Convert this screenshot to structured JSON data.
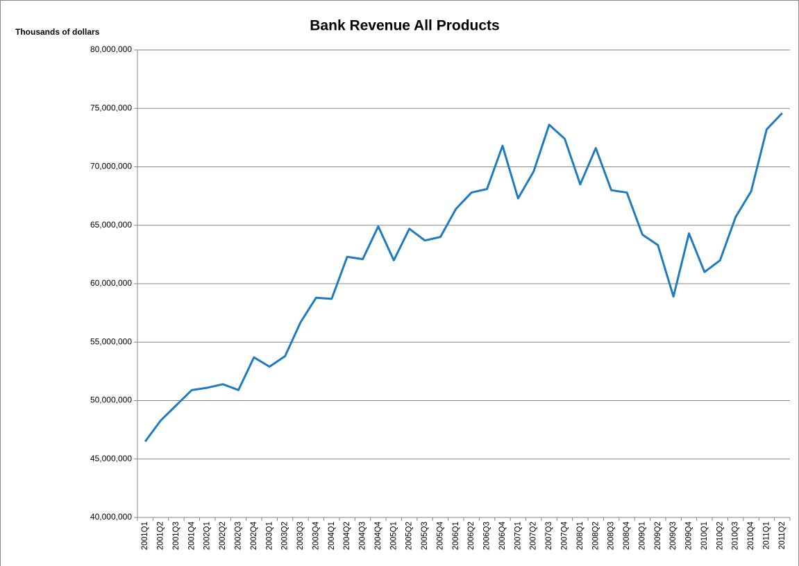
{
  "chart_data": {
    "type": "line",
    "title": "Bank Revenue All Products",
    "y_label": "Thousands of  dollars",
    "categories": [
      "2001Q1",
      "2001Q2",
      "2001Q3",
      "2001Q4",
      "2002Q1",
      "2002Q2",
      "2002Q3",
      "2002Q4",
      "2003Q1",
      "2003Q2",
      "2003Q3",
      "2003Q4",
      "2004Q1",
      "2004Q2",
      "2004Q3",
      "2004Q4",
      "2005Q1",
      "2005Q2",
      "2005Q3",
      "2005Q4",
      "2006Q1",
      "2006Q2",
      "2006Q3",
      "2006Q4",
      "2007Q1",
      "2007Q2",
      "2007Q3",
      "2007Q4",
      "2008Q1",
      "2008Q2",
      "2008Q3",
      "2008Q4",
      "2009Q1",
      "2009Q2",
      "2009Q3",
      "2009Q4",
      "2010Q1",
      "2010Q2",
      "2010Q3",
      "2010Q4",
      "2011Q1",
      "2011Q2"
    ],
    "values": [
      46500000,
      48300000,
      49600000,
      50900000,
      51100000,
      51400000,
      50900000,
      53700000,
      52900000,
      53800000,
      56700000,
      58800000,
      58700000,
      62300000,
      62100000,
      64900000,
      62000000,
      64700000,
      63700000,
      64000000,
      66400000,
      67800000,
      68100000,
      71800000,
      67300000,
      69600000,
      73600000,
      72400000,
      68500000,
      71600000,
      68000000,
      67800000,
      64200000,
      63300000,
      58900000,
      64300000,
      61000000,
      62000000,
      65700000,
      67900000,
      73200000,
      74600000
    ],
    "color": "#1f7bc0",
    "ylim": [
      40000000,
      80000000
    ],
    "yticks": [
      {
        "value": 40000000,
        "label": "40,000,000"
      },
      {
        "value": 45000000,
        "label": "45,000,000"
      },
      {
        "value": 50000000,
        "label": "50,000,000"
      },
      {
        "value": 55000000,
        "label": "55,000,000"
      },
      {
        "value": 60000000,
        "label": "60,000,000"
      },
      {
        "value": 65000000,
        "label": "65,000,000"
      },
      {
        "value": 70000000,
        "label": "70,000,000"
      },
      {
        "value": 75000000,
        "label": "75,000,000"
      },
      {
        "value": 80000000,
        "label": "80,000,000"
      }
    ],
    "grid": true
  }
}
